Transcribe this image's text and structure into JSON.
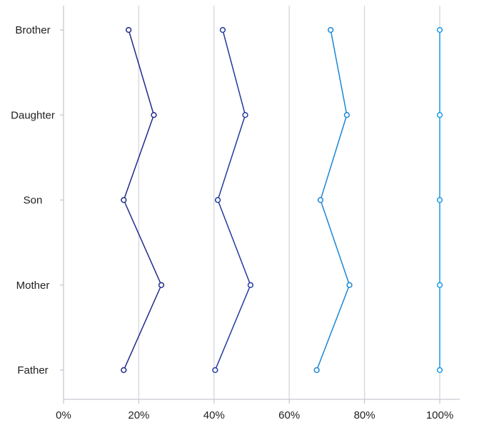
{
  "chart_data": {
    "type": "line",
    "orientation": "horizontal",
    "title": "",
    "xlabel": "",
    "ylabel": "",
    "categories": [
      "Brother",
      "Daughter",
      "Son",
      "Mother",
      "Father"
    ],
    "xlim": [
      0,
      100
    ],
    "x_ticks": [
      0,
      20,
      40,
      60,
      80,
      100
    ],
    "x_tick_labels": [
      "0%",
      "20%",
      "40%",
      "60%",
      "80%",
      "100%"
    ],
    "grid": "vertical",
    "legend": "none",
    "series": [
      {
        "values": [
          17.3,
          24.0,
          16.0,
          26.0,
          16.0
        ],
        "color": "#1f2a8a"
      },
      {
        "values": [
          42.3,
          48.3,
          41.0,
          49.7,
          40.3
        ],
        "color": "#233a9e"
      },
      {
        "values": [
          71.0,
          75.3,
          68.3,
          76.0,
          67.3
        ],
        "color": "#1a86d6"
      },
      {
        "values": [
          100,
          100,
          100,
          100,
          100
        ],
        "color": "#1b9ae6"
      }
    ]
  }
}
